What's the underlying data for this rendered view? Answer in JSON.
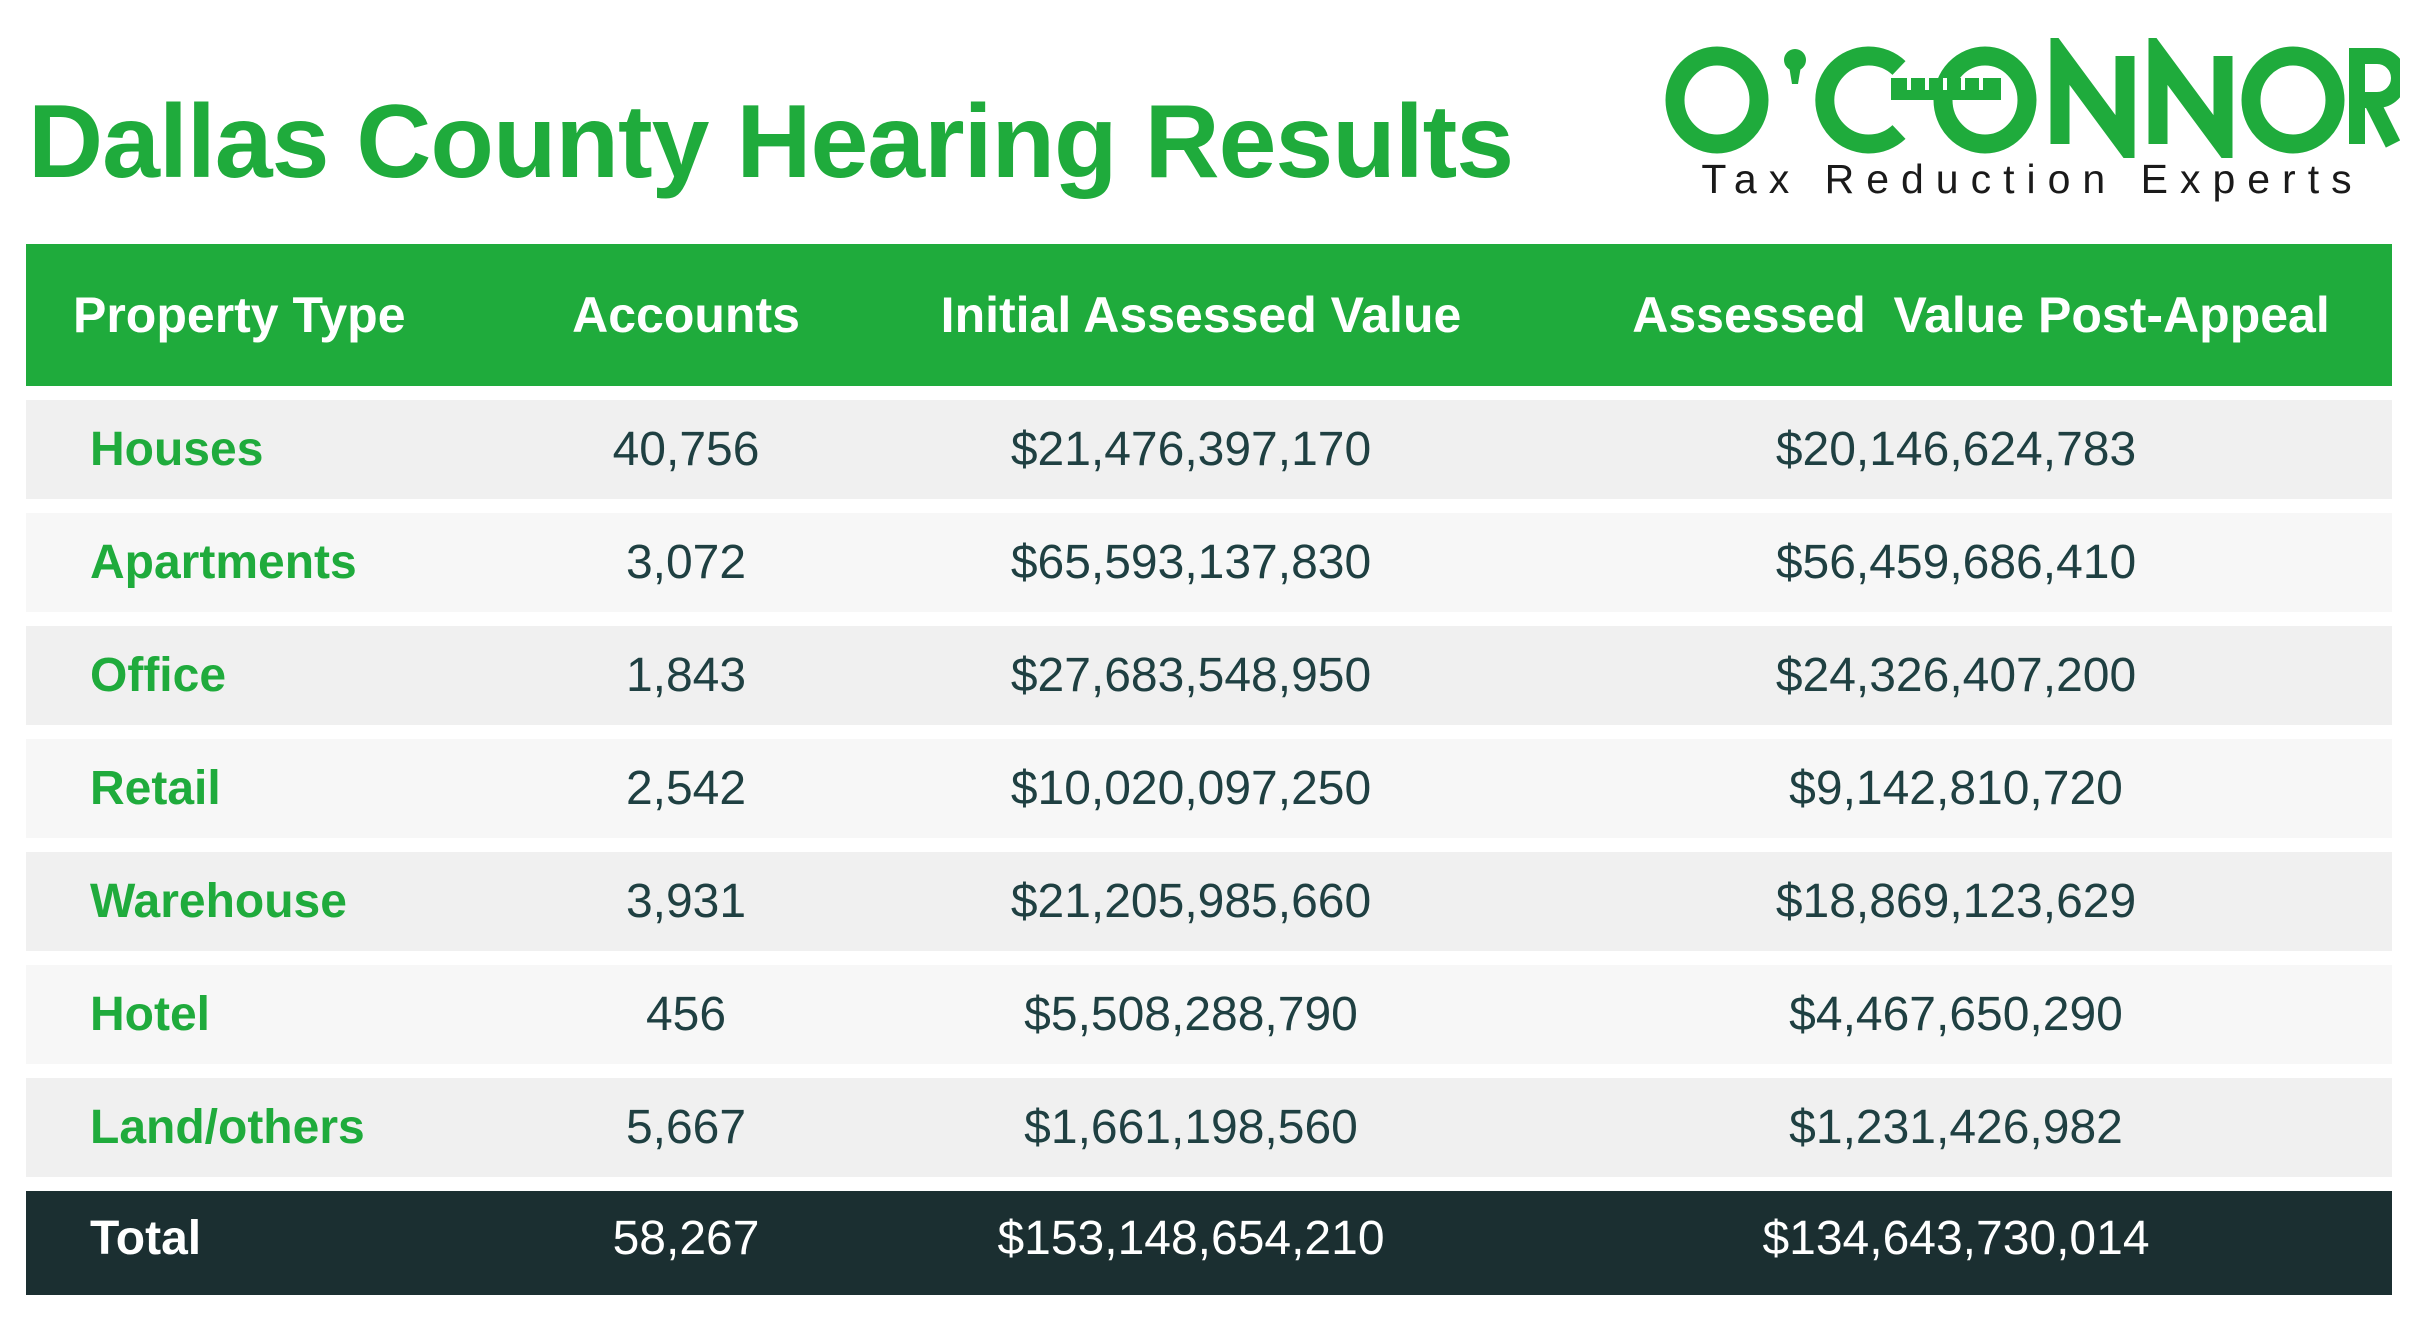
{
  "title": "Dallas County Hearing Results",
  "logo": {
    "wordmark": "O'CONNOR",
    "tagline": "Tax Reduction Experts",
    "brand_color": "#1fab3c"
  },
  "colors": {
    "accent_green": "#1fab3c",
    "total_row_bg": "#1b2f31",
    "row_bg_a": "#f0f0f0",
    "row_bg_b": "#f7f7f7",
    "value_text": "#1f4042"
  },
  "table": {
    "headers": {
      "property_type": "Property Type",
      "accounts": "Accounts",
      "initial_value": "Initial Assessed Value",
      "post_appeal_value": "Assessed  Value Post-Appeal"
    },
    "rows": [
      {
        "type": "Houses",
        "accounts": "40,756",
        "initial": "$21,476,397,170",
        "post": "$20,146,624,783"
      },
      {
        "type": "Apartments",
        "accounts": "3,072",
        "initial": "$65,593,137,830",
        "post": "$56,459,686,410"
      },
      {
        "type": "Office",
        "accounts": "1,843",
        "initial": "$27,683,548,950",
        "post": "$24,326,407,200"
      },
      {
        "type": "Retail",
        "accounts": "2,542",
        "initial": "$10,020,097,250",
        "post": "$9,142,810,720"
      },
      {
        "type": "Warehouse",
        "accounts": "3,931",
        "initial": "$21,205,985,660",
        "post": "$18,869,123,629"
      },
      {
        "type": "Hotel",
        "accounts": "456",
        "initial": "$5,508,288,790",
        "post": "$4,467,650,290"
      },
      {
        "type": "Land/others",
        "accounts": "5,667",
        "initial": "$1,661,198,560",
        "post": "$1,231,426,982"
      }
    ],
    "total": {
      "type": "Total",
      "accounts": "58,267",
      "initial": "$153,148,654,210",
      "post": "$134,643,730,014"
    }
  }
}
